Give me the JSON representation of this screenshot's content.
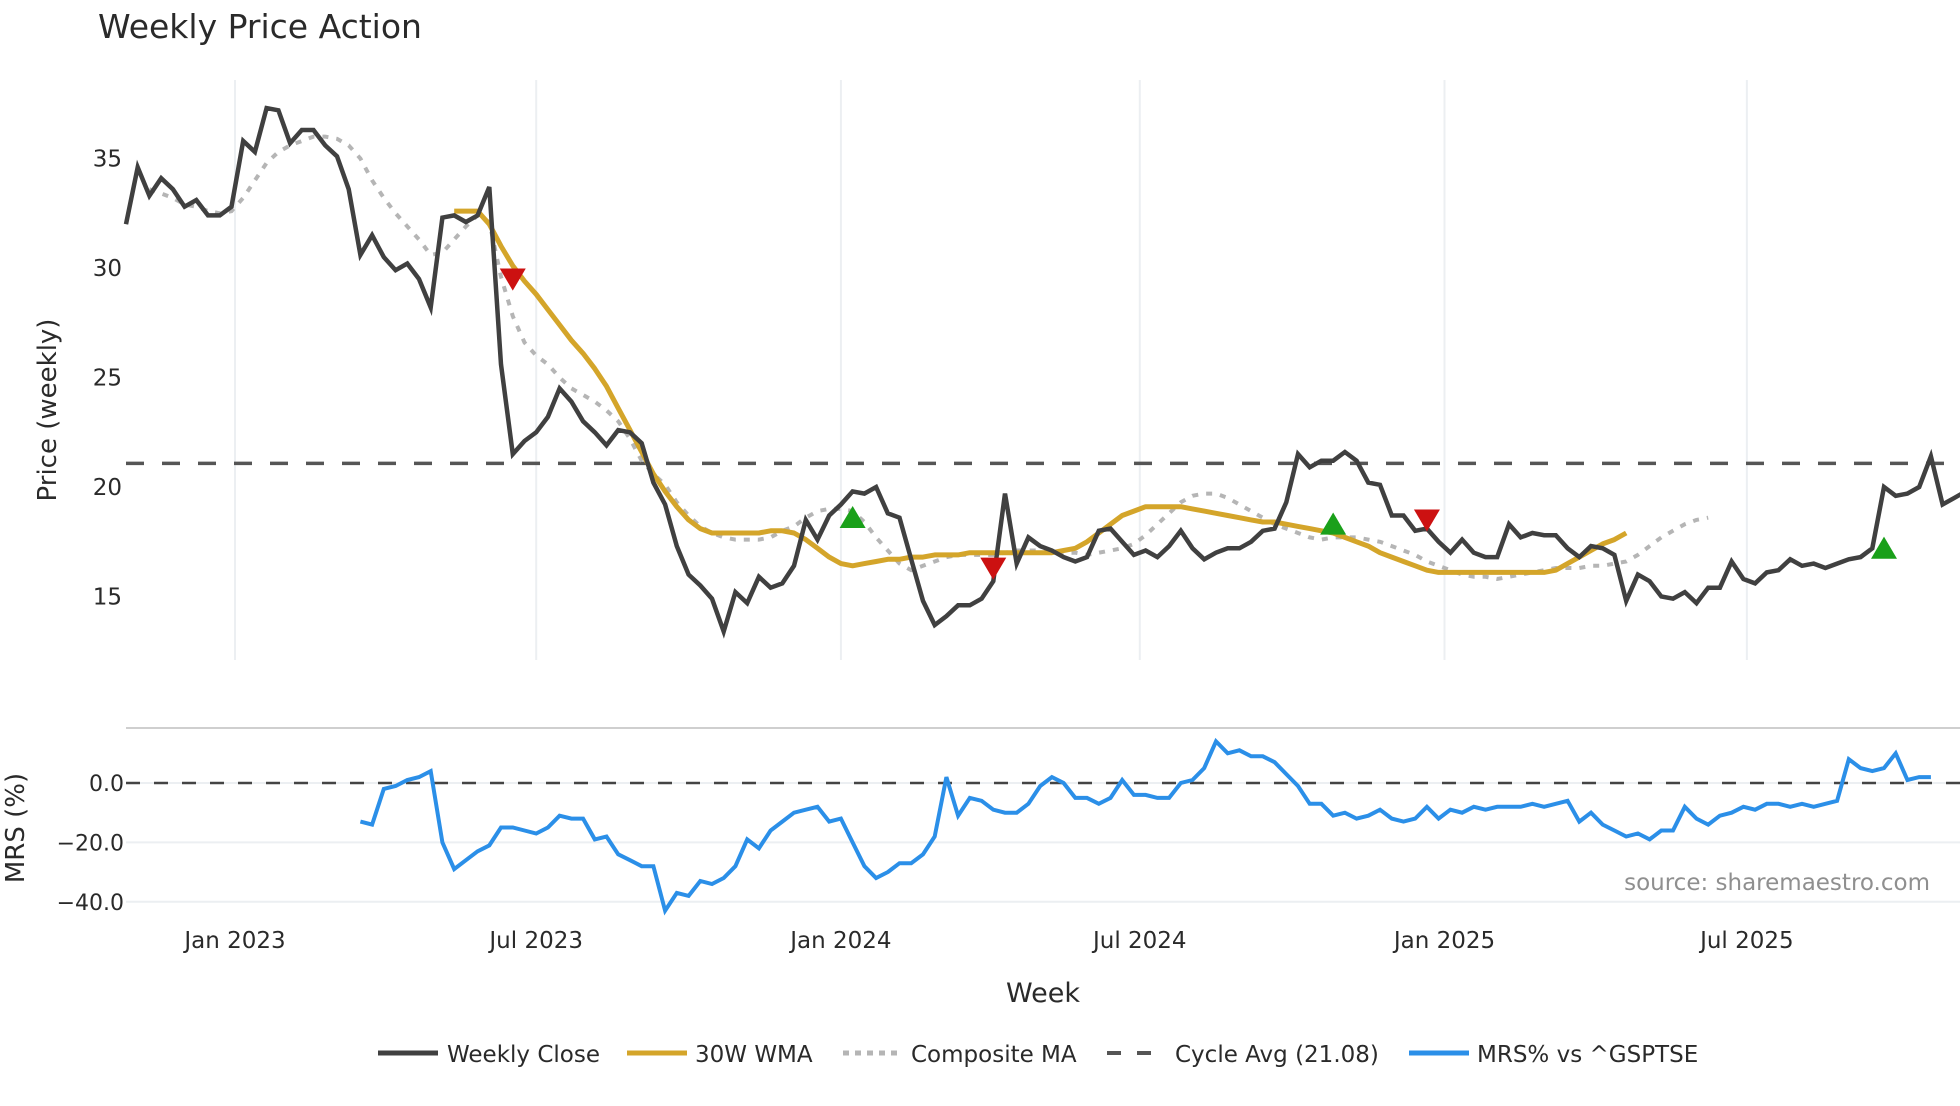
{
  "title": "Weekly Price Action",
  "source_note": "source: sharemaestro.com",
  "colors": {
    "weekly_close": "#404040",
    "wma": "#d4a52a",
    "composite": "#b5b5b5",
    "cycle_avg": "#555555",
    "mrs": "#2b8fe8",
    "buy": "#1aa01a",
    "sell": "#cc1111",
    "grid": "#eceff2"
  },
  "chart_data": [
    {
      "type": "line",
      "title": "Weekly Price Action",
      "xlabel": "Week",
      "ylabel": "Price (weekly)",
      "ylim": [
        12.0,
        38.5
      ],
      "yticks": [
        15,
        20,
        25,
        30,
        35
      ],
      "xtick_labels": [
        "Jan 2023",
        "Jul 2023",
        "Jan 2024",
        "Jul 2024",
        "Jan 2025",
        "Jul 2025"
      ],
      "grid": "vertical",
      "cycle_avg": 21.08,
      "x_start": "2022-11-07",
      "x_step_weeks": 1,
      "series": [
        {
          "name": "Weekly Close",
          "values": [
            32.0,
            34.6,
            33.3,
            34.1,
            33.6,
            32.8,
            33.1,
            32.4,
            32.4,
            32.8,
            35.8,
            35.3,
            37.3,
            37.2,
            35.7,
            36.3,
            36.3,
            35.6,
            35.1,
            33.6,
            30.6,
            31.5,
            30.5,
            29.9,
            30.2,
            29.5,
            28.2,
            32.3,
            32.4,
            32.1,
            32.4,
            33.7,
            25.6,
            21.5,
            22.1,
            22.5,
            23.2,
            24.5,
            23.9,
            23.0,
            22.5,
            21.9,
            22.6,
            22.5,
            22.0,
            20.2,
            19.2,
            17.3,
            16.0,
            15.5,
            14.9,
            13.4,
            15.2,
            14.7,
            15.9,
            15.4,
            15.6,
            16.4,
            18.5,
            17.6,
            18.7,
            19.2,
            19.8,
            19.7,
            20.0,
            18.8,
            18.6,
            16.7,
            14.8,
            13.7,
            14.1,
            14.6,
            14.6,
            14.9,
            15.7,
            19.7,
            16.5,
            17.7,
            17.3,
            17.1,
            16.8,
            16.6,
            16.8,
            18.0,
            18.1,
            17.5,
            16.9,
            17.1,
            16.8,
            17.3,
            18.0,
            17.2,
            16.7,
            17.0,
            17.2,
            17.2,
            17.5,
            18.0,
            18.1,
            19.3,
            21.5,
            20.9,
            21.2,
            21.2,
            21.6,
            21.2,
            20.2,
            20.1,
            18.7,
            18.7,
            18.0,
            18.1,
            17.5,
            17.0,
            17.6,
            17.0,
            16.8,
            16.8,
            18.3,
            17.7,
            17.9,
            17.8,
            17.8,
            17.2,
            16.8,
            17.3,
            17.2,
            16.9,
            14.8,
            16.0,
            15.7,
            15.0,
            14.9,
            15.2,
            14.7,
            15.4,
            15.4,
            16.6,
            15.8,
            15.6,
            16.1,
            16.2,
            16.7,
            16.4,
            16.5,
            16.3,
            16.5,
            16.7,
            16.8,
            17.2,
            20.0,
            19.6,
            19.7,
            20.0,
            21.4,
            19.2,
            19.5,
            19.8
          ]
        },
        {
          "name": "30W WMA",
          "start_index": 28,
          "values": [
            32.6,
            32.6,
            32.6,
            32.0,
            31.0,
            30.1,
            29.4,
            28.8,
            28.1,
            27.4,
            26.7,
            26.1,
            25.4,
            24.6,
            23.6,
            22.6,
            21.6,
            20.6,
            19.8,
            19.1,
            18.5,
            18.1,
            17.9,
            17.9,
            17.9,
            17.9,
            17.9,
            18.0,
            18.0,
            17.9,
            17.6,
            17.2,
            16.8,
            16.5,
            16.4,
            16.5,
            16.6,
            16.7,
            16.7,
            16.8,
            16.8,
            16.9,
            16.9,
            16.9,
            17.0,
            17.0,
            17.0,
            17.0,
            17.0,
            17.0,
            17.0,
            17.0,
            17.1,
            17.2,
            17.5,
            17.9,
            18.3,
            18.7,
            18.9,
            19.1,
            19.1,
            19.1,
            19.1,
            19.0,
            18.9,
            18.8,
            18.7,
            18.6,
            18.5,
            18.4,
            18.4,
            18.3,
            18.2,
            18.1,
            18.0,
            17.9,
            17.7,
            17.5,
            17.3,
            17.0,
            16.8,
            16.6,
            16.4,
            16.2,
            16.1,
            16.1,
            16.1,
            16.1,
            16.1,
            16.1,
            16.1,
            16.1,
            16.1,
            16.1,
            16.2,
            16.5,
            16.8,
            17.1,
            17.4,
            17.6,
            17.9
          ]
        },
        {
          "name": "Composite MA",
          "start_index": 2,
          "values": [
            33.6,
            33.4,
            33.2,
            32.9,
            32.8,
            32.6,
            32.5,
            32.6,
            33.2,
            34.0,
            34.8,
            35.3,
            35.6,
            35.8,
            36.0,
            36.0,
            35.9,
            35.6,
            35.0,
            34.0,
            33.2,
            32.5,
            31.9,
            31.3,
            30.6,
            30.7,
            31.3,
            31.9,
            32.4,
            32.1,
            29.6,
            27.8,
            26.6,
            26.0,
            25.6,
            25.0,
            24.5,
            24.2,
            23.9,
            23.5,
            23.0,
            22.2,
            21.2,
            20.6,
            20.1,
            19.3,
            18.7,
            18.2,
            17.9,
            17.7,
            17.6,
            17.6,
            17.6,
            17.7,
            18.0,
            18.2,
            18.6,
            18.9,
            19.0,
            19.0,
            18.9,
            18.4,
            17.7,
            17.1,
            16.5,
            16.2,
            16.4,
            16.6,
            16.8,
            16.9,
            16.9,
            16.9,
            16.9,
            17.0,
            17.1,
            17.1,
            17.1,
            17.0,
            17.0,
            17.0,
            16.9,
            17.0,
            17.1,
            17.2,
            17.4,
            17.8,
            18.3,
            18.8,
            19.3,
            19.6,
            19.7,
            19.7,
            19.5,
            19.2,
            18.9,
            18.6,
            18.3,
            18.1,
            17.9,
            17.7,
            17.6,
            17.7,
            17.7,
            17.7,
            17.6,
            17.5,
            17.3,
            17.1,
            16.9,
            16.6,
            16.4,
            16.2,
            16.0,
            15.9,
            15.9,
            15.8,
            15.9,
            16.0,
            16.1,
            16.2,
            16.3,
            16.3,
            16.3,
            16.4,
            16.4,
            16.5,
            16.6,
            16.9,
            17.3,
            17.7,
            18.0,
            18.3,
            18.5,
            18.6
          ]
        }
      ],
      "annotations": [
        {
          "type": "sell",
          "marker": "triangle-down",
          "index": 33,
          "y": 29.5
        },
        {
          "type": "buy",
          "marker": "triangle-up",
          "index": 62,
          "y": 18.6
        },
        {
          "type": "sell",
          "marker": "triangle-down",
          "index": 74,
          "y": 16.3
        },
        {
          "type": "buy",
          "marker": "triangle-up",
          "index": 103,
          "y": 18.3
        },
        {
          "type": "sell",
          "marker": "triangle-down",
          "index": 111,
          "y": 18.5
        },
        {
          "type": "buy",
          "marker": "triangle-up",
          "index": 150,
          "y": 17.2
        }
      ]
    },
    {
      "type": "line",
      "xlabel": "Week",
      "ylabel": "MRS (%)",
      "ylim": [
        -44,
        17
      ],
      "yticks": [
        0.0,
        -20.0,
        -40.0
      ],
      "ytick_labels": [
        "0.0",
        "−20.0",
        "−40.0"
      ],
      "reference_line": 0.0,
      "series": [
        {
          "name": "MRS% vs ^GSPTSE",
          "start_index": 20,
          "values": [
            -13,
            -14,
            -2,
            -1,
            1,
            2,
            4,
            -20,
            -29,
            -26,
            -23,
            -21,
            -15,
            -15,
            -16,
            -17,
            -15,
            -11,
            -12,
            -12,
            -19,
            -18,
            -24,
            -26,
            -28,
            -28,
            -43,
            -37,
            -38,
            -33,
            -34,
            -32,
            -28,
            -19,
            -22,
            -16,
            -13,
            -10,
            -9,
            -8,
            -13,
            -12,
            -20,
            -28,
            -32,
            -30,
            -27,
            -27,
            -24,
            -18,
            2,
            -11,
            -5,
            -6,
            -9,
            -10,
            -10,
            -7,
            -1,
            2,
            0,
            -5,
            -5,
            -7,
            -5,
            1,
            -4,
            -4,
            -5,
            -5,
            0,
            1,
            5,
            14,
            10,
            11,
            9,
            9,
            7,
            3,
            -1,
            -7,
            -7,
            -11,
            -10,
            -12,
            -11,
            -9,
            -12,
            -13,
            -12,
            -8,
            -12,
            -9,
            -10,
            -8,
            -9,
            -8,
            -8,
            -8,
            -7,
            -8,
            -7,
            -6,
            -13,
            -10,
            -14,
            -16,
            -18,
            -17,
            -19,
            -16,
            -16,
            -8,
            -12,
            -14,
            -11,
            -10,
            -8,
            -9,
            -7,
            -7,
            -8,
            -7,
            -8,
            -7,
            -6,
            8,
            5,
            4,
            5,
            10,
            1,
            2,
            2
          ]
        }
      ]
    }
  ],
  "legend": [
    {
      "label": "Weekly Close",
      "style": "solid",
      "color_key": "weekly_close"
    },
    {
      "label": "30W WMA",
      "style": "solid",
      "color_key": "wma"
    },
    {
      "label": "Composite MA",
      "style": "dotted",
      "color_key": "composite"
    },
    {
      "label": "Cycle Avg (21.08)",
      "style": "dashed",
      "color_key": "cycle_avg"
    },
    {
      "label": "MRS% vs ^GSPTSE",
      "style": "solid",
      "color_key": "mrs"
    }
  ],
  "axes": {
    "price_ylabel": "Price (weekly)",
    "mrs_ylabel": "MRS (%)",
    "xlabel": "Week",
    "price_ticks": [
      {
        "label": "35",
        "value": 35
      },
      {
        "label": "30",
        "value": 30
      },
      {
        "label": "25",
        "value": 25
      },
      {
        "label": "20",
        "value": 20
      },
      {
        "label": "15",
        "value": 15
      }
    ],
    "mrs_ticks": [
      {
        "label": "0.0",
        "value": 0
      },
      {
        "label": "−20.0",
        "value": -20
      },
      {
        "label": "−40.0",
        "value": -40
      }
    ],
    "x_ticks": [
      {
        "label": "Jan 2023",
        "index": 9.3
      },
      {
        "label": "Jul 2023",
        "index": 35
      },
      {
        "label": "Jan 2024",
        "index": 61
      },
      {
        "label": "Jul 2024",
        "index": 86.5
      },
      {
        "label": "Jan 2025",
        "index": 112.5
      },
      {
        "label": "Jul 2025",
        "index": 138.3
      }
    ]
  }
}
